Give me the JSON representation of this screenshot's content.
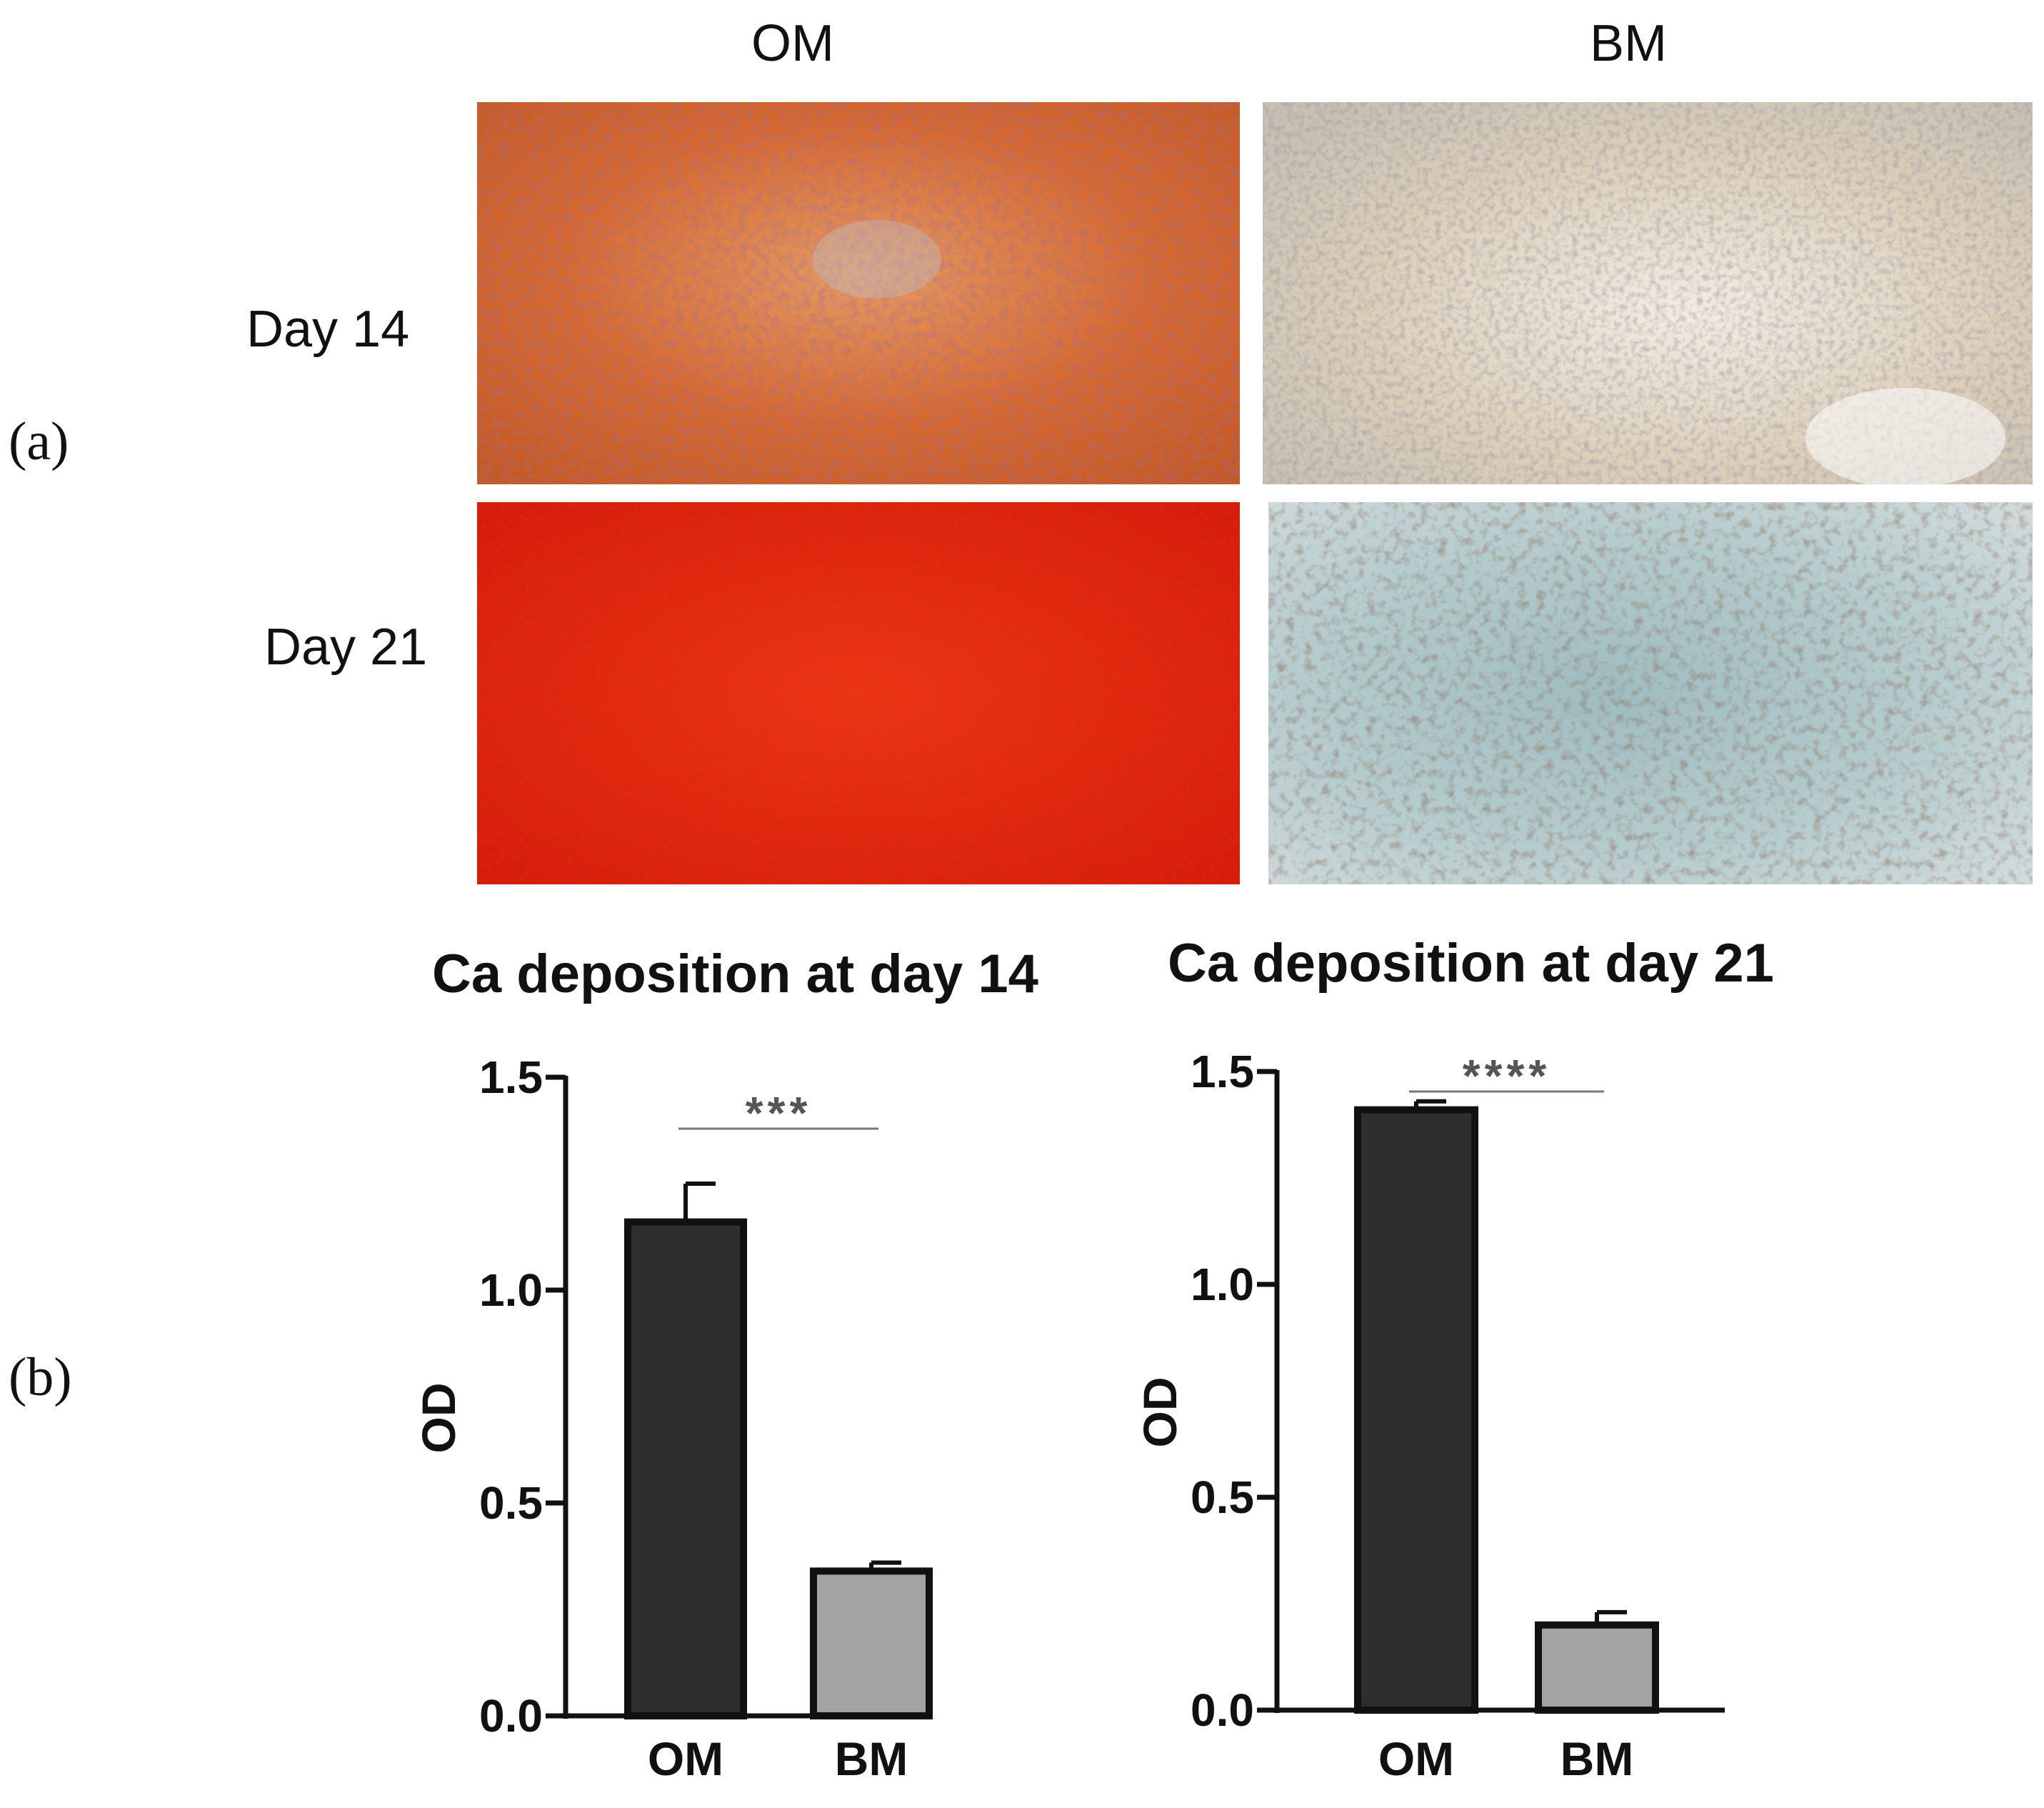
{
  "figure": {
    "panel_a_label": "(a)",
    "panel_b_label": "(b)",
    "columns": [
      "OM",
      "BM"
    ],
    "rows": [
      "Day 14",
      "Day 21"
    ],
    "micrographs": [
      {
        "row": "Day 14",
        "column": "OM",
        "stain_color": "#d9662c"
      },
      {
        "row": "Day 14",
        "column": "BM",
        "stain_color": "#d8cdb8"
      },
      {
        "row": "Day 21",
        "column": "OM",
        "stain_color": "#e2220c"
      },
      {
        "row": "Day 21",
        "column": "BM",
        "stain_color": "#a9c3c6"
      }
    ]
  },
  "chart_data": [
    {
      "type": "bar",
      "title": "Ca deposition at day 14",
      "xlabel": "",
      "ylabel": "OD",
      "categories": [
        "OM",
        "BM"
      ],
      "values": [
        1.16,
        0.34
      ],
      "error": [
        0.09,
        0.02
      ],
      "bar_colors": [
        "#2e2e2e",
        "#a3a3a6"
      ],
      "ylim": [
        0,
        1.5
      ],
      "yticks": [
        "0.0",
        "0.5",
        "1.0",
        "1.5"
      ],
      "significance": "***"
    },
    {
      "type": "bar",
      "title": "Ca deposition at day 21",
      "xlabel": "",
      "ylabel": "OD",
      "categories": [
        "OM",
        "BM"
      ],
      "values": [
        1.41,
        0.2
      ],
      "error": [
        0.02,
        0.03
      ],
      "bar_colors": [
        "#2e2e2e",
        "#a3a3a6"
      ],
      "ylim": [
        0,
        1.5
      ],
      "yticks": [
        "0.0",
        "0.5",
        "1.0",
        "1.5"
      ],
      "significance": "****"
    }
  ]
}
